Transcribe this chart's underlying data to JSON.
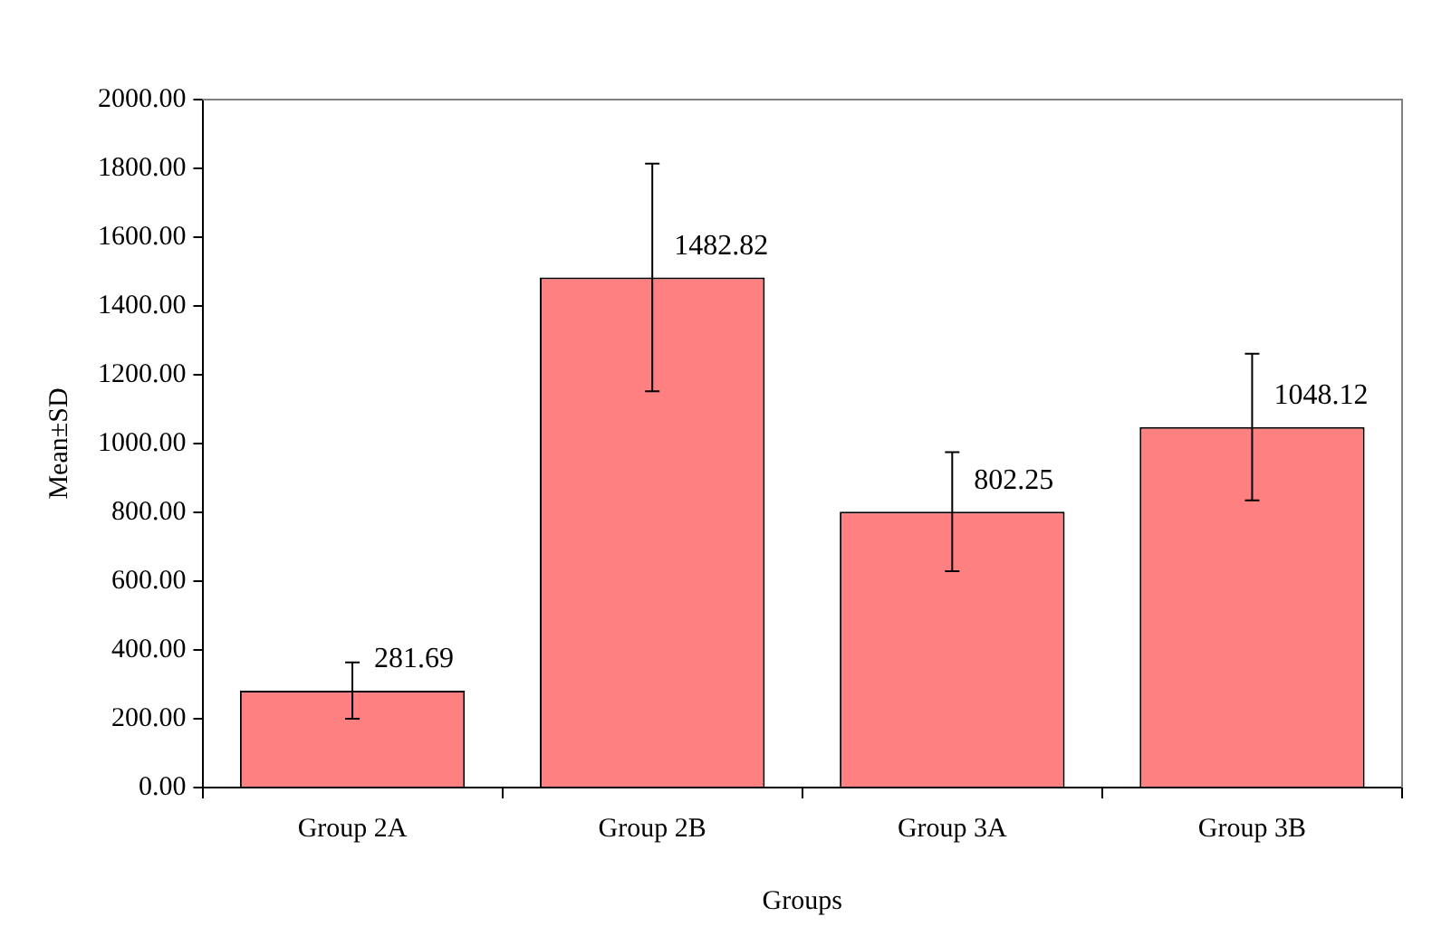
{
  "chart_data": {
    "type": "bar",
    "xlabel": "Groups",
    "ylabel": "Mean±SD",
    "categories": [
      "Group 2A",
      "Group 2B",
      "Group 3A",
      "Group 3B"
    ],
    "values": [
      281.69,
      1482.82,
      802.25,
      1048.12
    ],
    "errors": [
      82,
      331,
      173,
      213
    ],
    "color": "#ff8080",
    "ylim": [
      0,
      2000
    ],
    "yticks": [
      {
        "value": 0,
        "label": "0.00"
      },
      {
        "value": 200,
        "label": "200.00"
      },
      {
        "value": 400,
        "label": "400.00"
      },
      {
        "value": 600,
        "label": "600.00"
      },
      {
        "value": 800,
        "label": "800.00"
      },
      {
        "value": 1000,
        "label": "1000.00"
      },
      {
        "value": 1200,
        "label": "1200.00"
      },
      {
        "value": 1400,
        "label": "1400.00"
      },
      {
        "value": 1600,
        "label": "1600.00"
      },
      {
        "value": 1800,
        "label": "1800.00"
      },
      {
        "value": 2000,
        "label": "2000.00"
      }
    ],
    "data_labels": true
  }
}
